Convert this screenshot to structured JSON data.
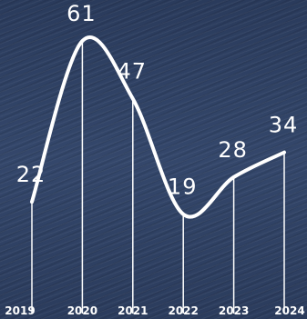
{
  "chart_data": {
    "type": "line",
    "categories": [
      "2019",
      "2020",
      "2021",
      "2022",
      "2023",
      "2024"
    ],
    "values": [
      22,
      61,
      47,
      19,
      28,
      34
    ],
    "color": "#ffffff"
  }
}
